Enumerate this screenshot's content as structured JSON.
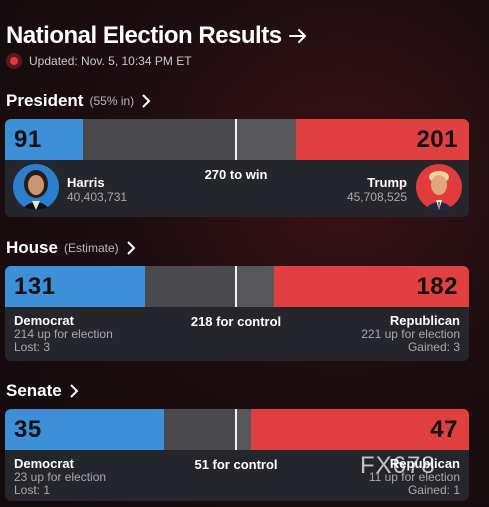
{
  "header": {
    "title": "National Election Results",
    "updated": "Updated: Nov. 5, 10:34 PM ET"
  },
  "president": {
    "title": "President",
    "sub": "(55% in)",
    "dem_votes": "91",
    "rep_votes": "201",
    "threshold": "270 to win",
    "dem_candidate": {
      "name": "Harris",
      "popular_votes": "40,403,731"
    },
    "rep_candidate": {
      "name": "Trump",
      "popular_votes": "45,708,525"
    }
  },
  "house": {
    "title": "House",
    "sub": "(Estimate)",
    "dem_seats": "131",
    "rep_seats": "182",
    "threshold": "218 for control",
    "dem": {
      "party": "Democrat",
      "up": "214 up for election",
      "change": "Lost: 3"
    },
    "rep": {
      "party": "Republican",
      "up": "221 up for election",
      "change": "Gained: 3"
    }
  },
  "senate": {
    "title": "Senate",
    "dem_seats": "35",
    "rep_seats": "47",
    "threshold": "51 for control",
    "dem": {
      "party": "Democrat",
      "up": "23 up for election",
      "change": "Lost: 1"
    },
    "rep": {
      "party": "Republican",
      "up": "11 up for election",
      "change": "Gained: 1"
    }
  },
  "watermark": "FX678",
  "colors": {
    "democrat": "#3d8fd8",
    "republican": "#e0403f",
    "live": "#e8363d"
  }
}
